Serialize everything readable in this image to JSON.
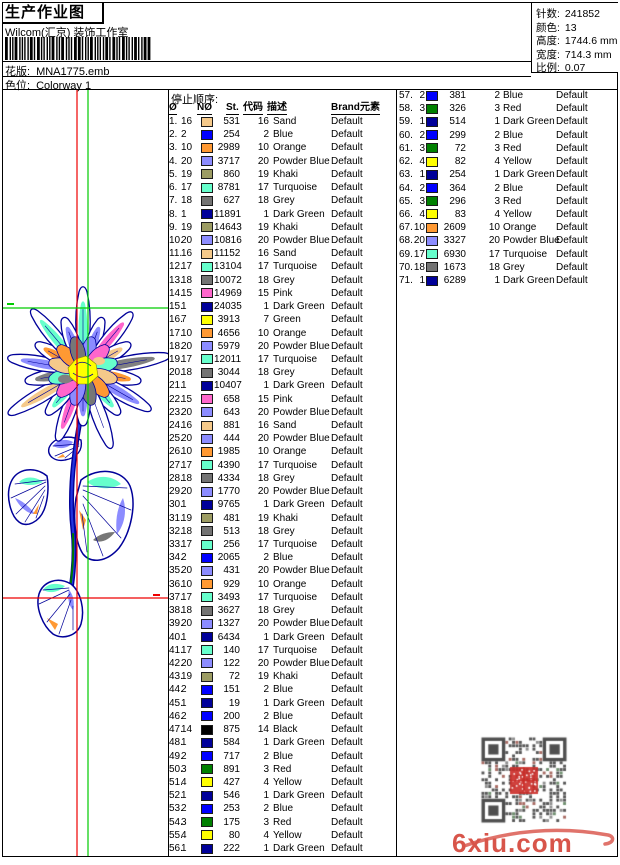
{
  "header": {
    "title": "生产作业图",
    "subtitle": "Wilcom(汇京) 装饰工作室",
    "pattern_label": "花版:",
    "pattern_value": "MNA1775.emb",
    "colorway_label": "色位:",
    "colorway_value": "Colorway 1"
  },
  "info_box": {
    "stitches_label": "针数:",
    "stitches": "241852",
    "colors_label": "颜色:",
    "colors": "13",
    "height_label": "高度:",
    "height": "1744.6 mm",
    "width_label": "宽度:",
    "width": "714.3 mm",
    "scale_label": "比例:",
    "scale": "0.07"
  },
  "table": {
    "section_label": "停止顺序:",
    "headers": {
      "seq": "Ø",
      "needle": "NØ",
      "stitches": "St.",
      "code": "代码",
      "description": "描述",
      "brand": "Brand",
      "element": "元素"
    },
    "swatch_colors": {
      "1": "#000099",
      "2": "#0000ff",
      "3": "#008000",
      "4": "#ffff00",
      "7": "#ffff00",
      "10": "#ff9933",
      "14": "#000000",
      "15": "#ff66cc",
      "16": "#f5c98a",
      "17": "#66ffcc",
      "18": "#737373",
      "19": "#9c9c63",
      "20": "#8c8cff"
    },
    "left_rows": [
      [
        1,
        16,
        531,
        16,
        "Sand",
        "Default"
      ],
      [
        2,
        2,
        254,
        2,
        "Blue",
        "Default"
      ],
      [
        3,
        10,
        2989,
        10,
        "Orange",
        "Default"
      ],
      [
        4,
        20,
        3717,
        20,
        "Powder Blue",
        "Default"
      ],
      [
        5,
        19,
        860,
        19,
        "Khaki",
        "Default"
      ],
      [
        6,
        17,
        8781,
        17,
        "Turquoise",
        "Default"
      ],
      [
        7,
        18,
        627,
        18,
        "Grey",
        "Default"
      ],
      [
        8,
        1,
        11891,
        1,
        "Dark Green",
        "Default"
      ],
      [
        9,
        19,
        14643,
        19,
        "Khaki",
        "Default"
      ],
      [
        10,
        20,
        10816,
        20,
        "Powder Blue",
        "Default"
      ],
      [
        11,
        16,
        11152,
        16,
        "Sand",
        "Default"
      ],
      [
        12,
        17,
        13104,
        17,
        "Turquoise",
        "Default"
      ],
      [
        13,
        18,
        10072,
        18,
        "Grey",
        "Default"
      ],
      [
        14,
        15,
        14969,
        15,
        "Pink",
        "Default"
      ],
      [
        15,
        1,
        24035,
        1,
        "Dark Green",
        "Default"
      ],
      [
        16,
        7,
        3913,
        7,
        "Green",
        "Default"
      ],
      [
        17,
        10,
        4656,
        10,
        "Orange",
        "Default"
      ],
      [
        18,
        20,
        5979,
        20,
        "Powder Blue",
        "Default"
      ],
      [
        19,
        17,
        12011,
        17,
        "Turquoise",
        "Default"
      ],
      [
        20,
        18,
        3044,
        18,
        "Grey",
        "Default"
      ],
      [
        21,
        1,
        10407,
        1,
        "Dark Green",
        "Default"
      ],
      [
        22,
        15,
        658,
        15,
        "Pink",
        "Default"
      ],
      [
        23,
        20,
        643,
        20,
        "Powder Blue",
        "Default"
      ],
      [
        24,
        16,
        881,
        16,
        "Sand",
        "Default"
      ],
      [
        25,
        20,
        444,
        20,
        "Powder Blue",
        "Default"
      ],
      [
        26,
        10,
        1985,
        10,
        "Orange",
        "Default"
      ],
      [
        27,
        17,
        4390,
        17,
        "Turquoise",
        "Default"
      ],
      [
        28,
        18,
        4334,
        18,
        "Grey",
        "Default"
      ],
      [
        29,
        20,
        1770,
        20,
        "Powder Blue",
        "Default"
      ],
      [
        30,
        1,
        9765,
        1,
        "Dark Green",
        "Default"
      ],
      [
        31,
        19,
        481,
        19,
        "Khaki",
        "Default"
      ],
      [
        32,
        18,
        513,
        18,
        "Grey",
        "Default"
      ],
      [
        33,
        17,
        256,
        17,
        "Turquoise",
        "Default"
      ],
      [
        34,
        2,
        2065,
        2,
        "Blue",
        "Default"
      ],
      [
        35,
        20,
        431,
        20,
        "Powder Blue",
        "Default"
      ],
      [
        36,
        10,
        929,
        10,
        "Orange",
        "Default"
      ],
      [
        37,
        17,
        3493,
        17,
        "Turquoise",
        "Default"
      ],
      [
        38,
        18,
        3627,
        18,
        "Grey",
        "Default"
      ],
      [
        39,
        20,
        1327,
        20,
        "Powder Blue",
        "Default"
      ],
      [
        40,
        1,
        6434,
        1,
        "Dark Green",
        "Default"
      ],
      [
        41,
        17,
        140,
        17,
        "Turquoise",
        "Default"
      ],
      [
        42,
        20,
        122,
        20,
        "Powder Blue",
        "Default"
      ],
      [
        43,
        19,
        72,
        19,
        "Khaki",
        "Default"
      ],
      [
        44,
        2,
        151,
        2,
        "Blue",
        "Default"
      ],
      [
        45,
        1,
        19,
        1,
        "Dark Green",
        "Default"
      ],
      [
        46,
        2,
        200,
        2,
        "Blue",
        "Default"
      ],
      [
        47,
        14,
        875,
        14,
        "Black",
        "Default"
      ],
      [
        48,
        1,
        584,
        1,
        "Dark Green",
        "Default"
      ],
      [
        49,
        2,
        717,
        2,
        "Blue",
        "Default"
      ],
      [
        50,
        3,
        891,
        3,
        "Red",
        "Default"
      ],
      [
        51,
        4,
        427,
        4,
        "Yellow",
        "Default"
      ],
      [
        52,
        1,
        546,
        1,
        "Dark Green",
        "Default"
      ],
      [
        53,
        2,
        253,
        2,
        "Blue",
        "Default"
      ],
      [
        54,
        3,
        175,
        3,
        "Red",
        "Default"
      ],
      [
        55,
        4,
        80,
        4,
        "Yellow",
        "Default"
      ],
      [
        56,
        1,
        222,
        1,
        "Dark Green",
        "Default"
      ]
    ],
    "right_rows": [
      [
        57,
        2,
        381,
        2,
        "Blue",
        "Default"
      ],
      [
        58,
        3,
        326,
        3,
        "Red",
        "Default"
      ],
      [
        59,
        1,
        514,
        1,
        "Dark Green",
        "Default"
      ],
      [
        60,
        2,
        299,
        2,
        "Blue",
        "Default"
      ],
      [
        61,
        3,
        72,
        3,
        "Red",
        "Default"
      ],
      [
        62,
        4,
        82,
        4,
        "Yellow",
        "Default"
      ],
      [
        63,
        1,
        254,
        1,
        "Dark Green",
        "Default"
      ],
      [
        64,
        2,
        364,
        2,
        "Blue",
        "Default"
      ],
      [
        65,
        3,
        296,
        3,
        "Red",
        "Default"
      ],
      [
        66,
        4,
        83,
        4,
        "Yellow",
        "Default"
      ],
      [
        67,
        10,
        2609,
        10,
        "Orange",
        "Default"
      ],
      [
        68,
        20,
        3327,
        20,
        "Powder Blue",
        "Default"
      ],
      [
        69,
        17,
        6930,
        17,
        "Turquoise",
        "Default"
      ],
      [
        70,
        18,
        1673,
        18,
        "Grey",
        "Default"
      ],
      [
        71,
        1,
        6289,
        1,
        "Dark Green",
        "Default"
      ]
    ]
  },
  "design": {
    "outline_color": "#000099",
    "stem_highlight": "#2233dd",
    "stem_green": "#007700",
    "center_color": "#ffff00",
    "guide_green": "#00cc00",
    "guide_red": "#ee0000",
    "petal_accents": [
      "#66ffcc",
      "#8c8cff",
      "#ff66cc",
      "#f5c98a",
      "#808080",
      "#ff9933",
      "#8c8cff",
      "#66ffcc",
      "#ffffff",
      "#8c8cff",
      "#ff66cc",
      "#66ffcc",
      "#f5c98a",
      "#808080",
      "#8c8cff",
      "#ff9933",
      "#66ffcc",
      "#8c8cff"
    ],
    "inner_petal_fills": [
      "#8c8cff",
      "#ff66cc",
      "#66ffcc",
      "#f5c98a",
      "#ff9933",
      "#777777"
    ]
  },
  "watermark": {
    "text": "6xiu.com",
    "color": "#d8554a"
  }
}
